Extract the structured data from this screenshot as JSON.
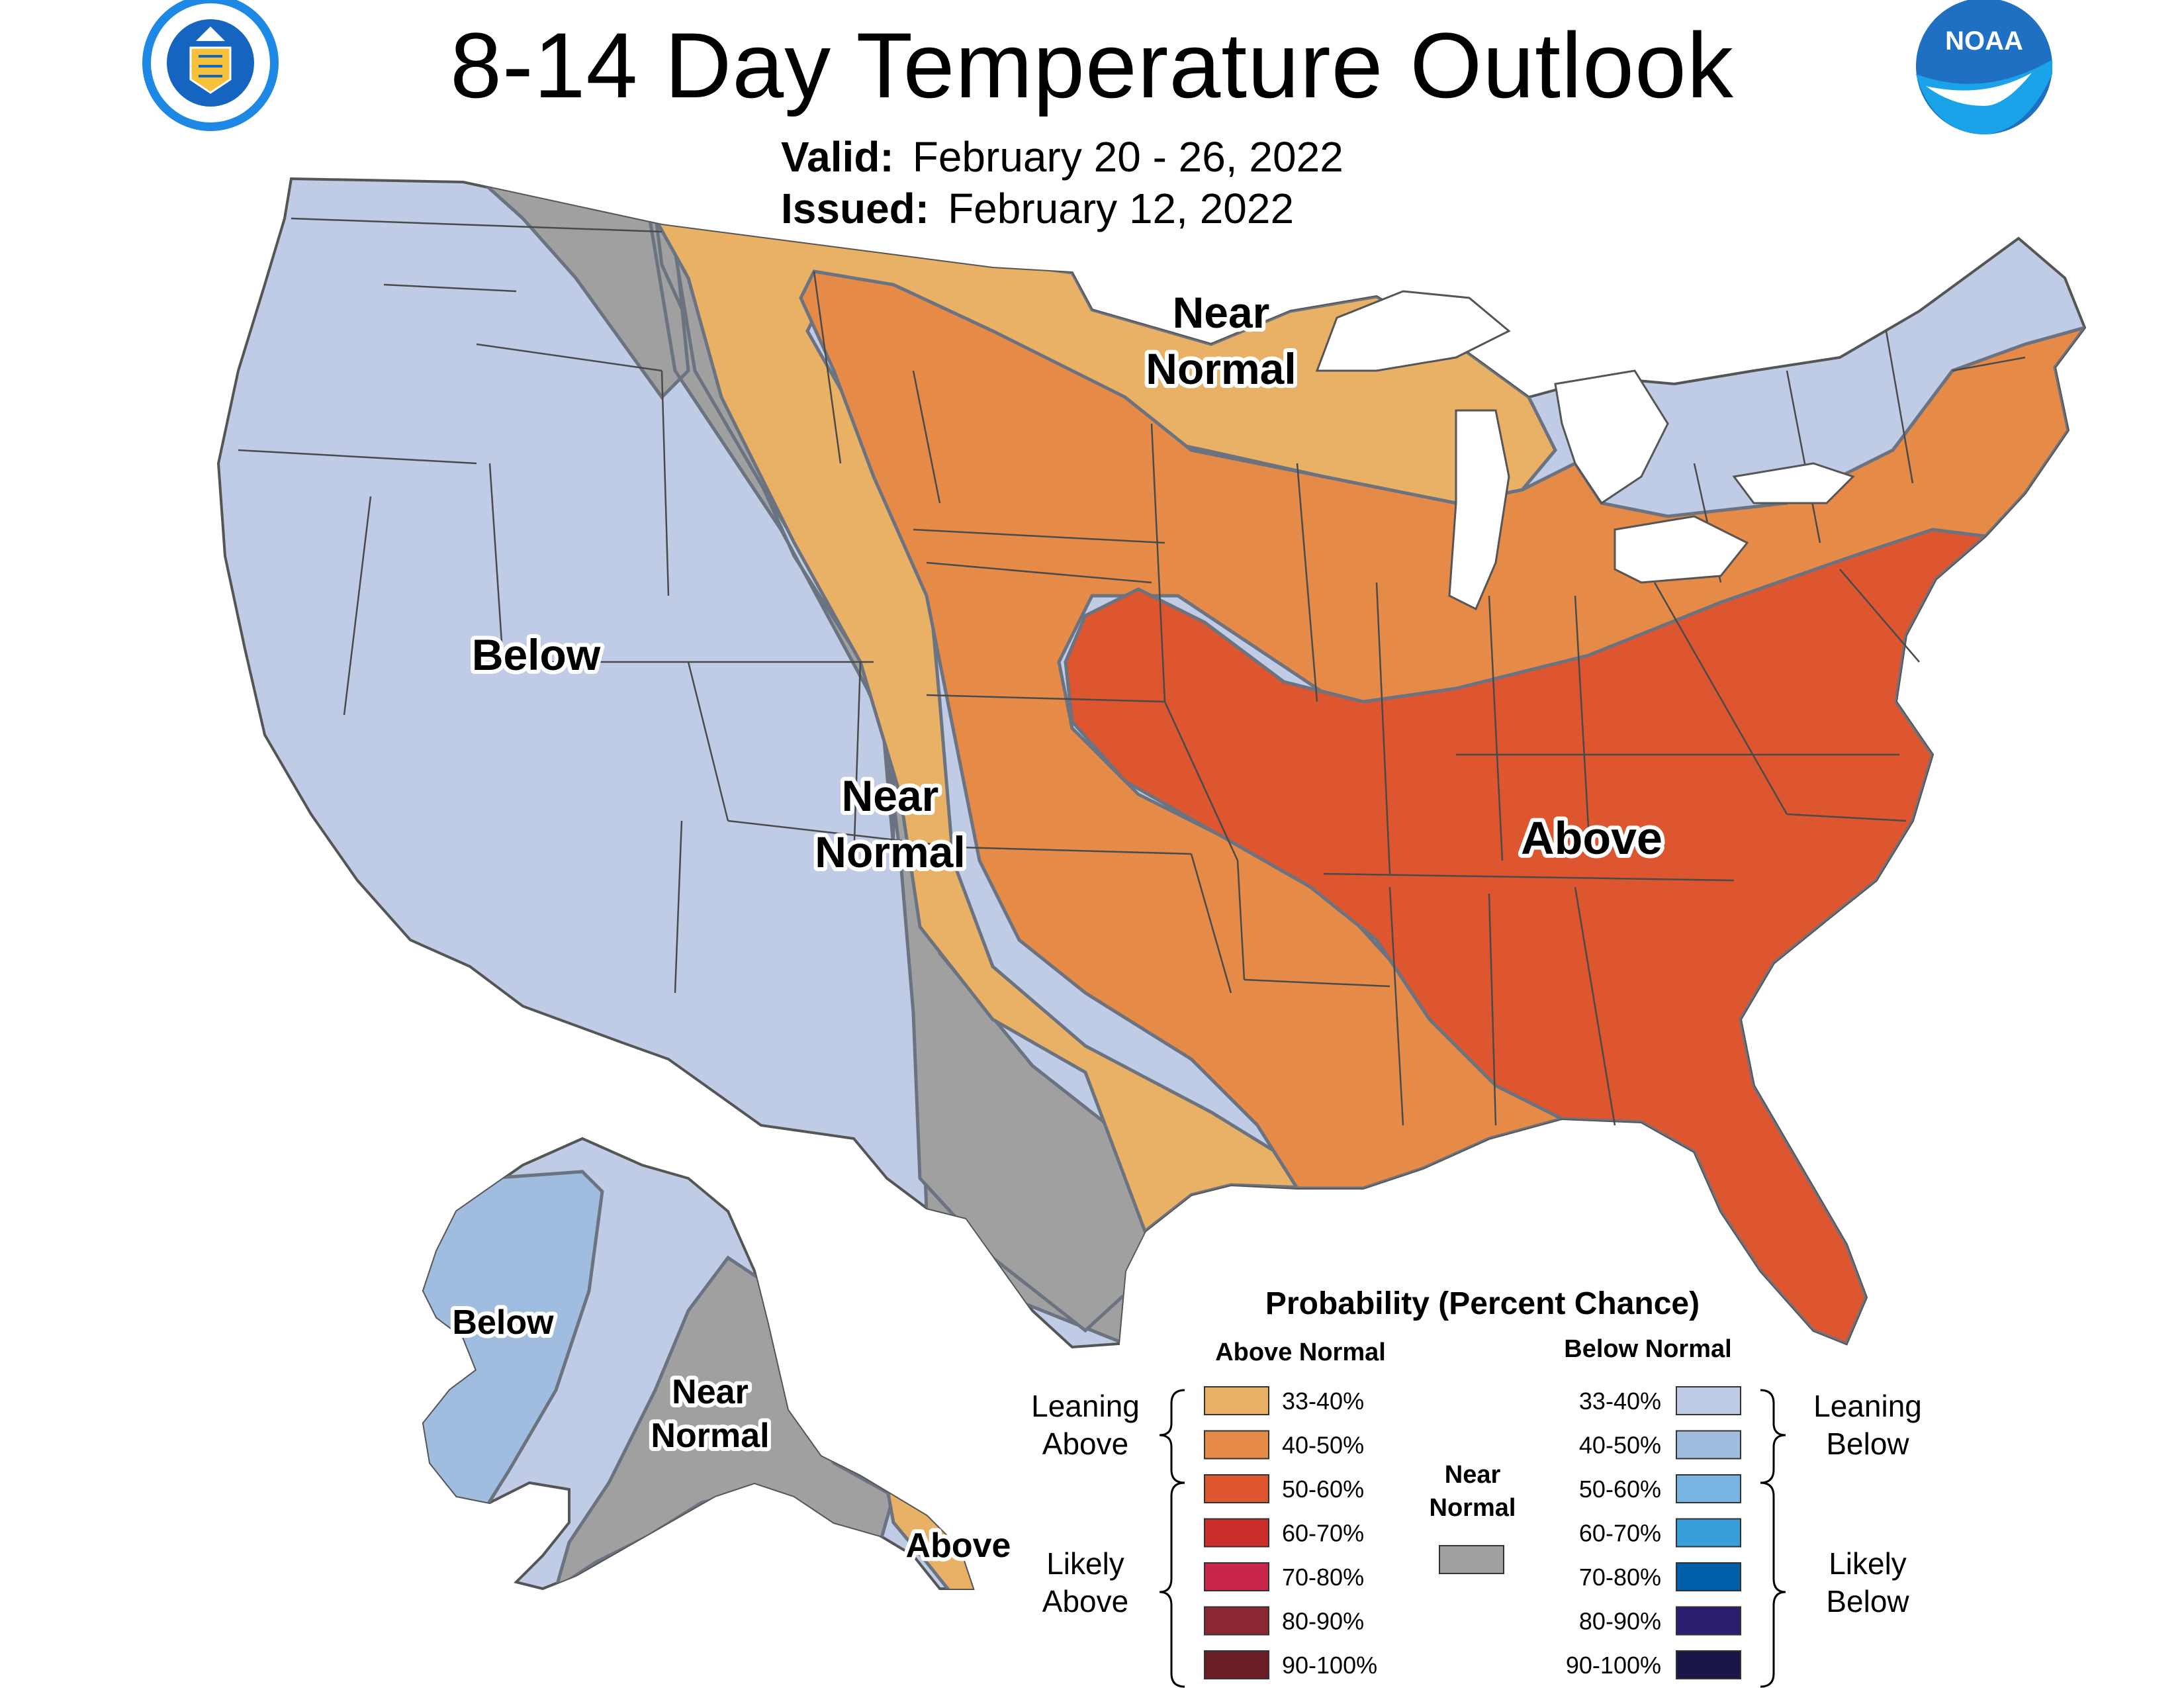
{
  "title": "8-14 Day Temperature Outlook",
  "valid_label": "Valid:",
  "valid_value": "February 20 - 26, 2022",
  "issued_label": "Issued:",
  "issued_value": "February 12, 2022",
  "logos": {
    "left": "department-of-commerce-seal",
    "right": "noaa-logo",
    "right_text": "NOAA"
  },
  "map_labels": {
    "conus_below": "Below",
    "conus_near_normal_west": [
      "Near",
      "Normal"
    ],
    "conus_near_normal_north": [
      "Near",
      "Normal"
    ],
    "conus_above": "Above",
    "alaska_below": "Below",
    "alaska_near_normal": [
      "Near",
      "Normal"
    ],
    "alaska_above": "Above"
  },
  "legend": {
    "title": "Probability (Percent Chance)",
    "above_header": "Above Normal",
    "below_header": "Below Normal",
    "near_normal": [
      "Near",
      "Normal"
    ],
    "near_normal_color": "#a0a0a0",
    "leaning_above": [
      "Leaning",
      "Above"
    ],
    "likely_above": [
      "Likely",
      "Above"
    ],
    "leaning_below": [
      "Leaning",
      "Below"
    ],
    "likely_below": [
      "Likely",
      "Below"
    ],
    "above": [
      {
        "label": "33-40%",
        "color": "#e8b166"
      },
      {
        "label": "40-50%",
        "color": "#e58a47"
      },
      {
        "label": "50-60%",
        "color": "#dd5630"
      },
      {
        "label": "60-70%",
        "color": "#cb2e2a"
      },
      {
        "label": "70-80%",
        "color": "#c7254a"
      },
      {
        "label": "80-90%",
        "color": "#8a2733"
      },
      {
        "label": "90-100%",
        "color": "#6b1d23"
      }
    ],
    "below": [
      {
        "label": "33-40%",
        "color": "#c0cbe5"
      },
      {
        "label": "40-50%",
        "color": "#a0bde0"
      },
      {
        "label": "50-60%",
        "color": "#79b5e3"
      },
      {
        "label": "60-70%",
        "color": "#399fdb"
      },
      {
        "label": "70-80%",
        "color": "#005ea8"
      },
      {
        "label": "80-90%",
        "color": "#2c1d6e"
      },
      {
        "label": "90-100%",
        "color": "#1a1648"
      }
    ]
  },
  "colors": {
    "below_33_40": "#c0cbe5",
    "below_40_50": "#a0bde0",
    "near_normal": "#a0a0a0",
    "above_33_40": "#e8b166",
    "above_40_50": "#e58a47",
    "above_50_60": "#dd5630"
  }
}
